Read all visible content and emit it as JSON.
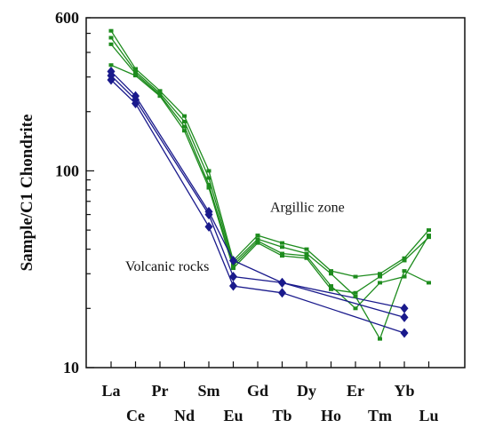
{
  "chart_data": {
    "type": "line",
    "ylabel": "Sample/C1 Chondrite",
    "yscale": "log",
    "ylim": [
      10,
      600
    ],
    "yticks": [
      10,
      100,
      600
    ],
    "categories": [
      "La",
      "Ce",
      "Pr",
      "Nd",
      "Sm",
      "Eu",
      "Gd",
      "Tb",
      "Dy",
      "Ho",
      "Er",
      "Tm",
      "Yb",
      "Lu"
    ],
    "annotations": [
      {
        "text": "Argillic zone"
      },
      {
        "text": "Volcanic rocks"
      }
    ],
    "colors": {
      "argillic": "#1e8c1e",
      "volcanic": "#1a1a8c"
    },
    "series": [
      {
        "group": "argillic",
        "values": [
          515,
          330,
          255,
          190,
          100,
          35,
          47,
          43,
          40,
          31,
          29,
          30,
          36,
          50
        ]
      },
      {
        "group": "argillic",
        "values": [
          475,
          320,
          248,
          178,
          92,
          34,
          45,
          41,
          38,
          30,
          23,
          14,
          31,
          27
        ]
      },
      {
        "group": "argillic",
        "values": [
          440,
          312,
          243,
          168,
          85,
          33,
          44,
          38,
          37,
          26,
          20,
          27,
          29,
          47
        ]
      },
      {
        "group": "argillic",
        "values": [
          345,
          305,
          240,
          160,
          82,
          32,
          43,
          37,
          36,
          25,
          24,
          29,
          35,
          46
        ]
      },
      {
        "group": "volcanic",
        "values": [
          320,
          240,
          null,
          null,
          62,
          35,
          null,
          27,
          null,
          null,
          null,
          null,
          20,
          null
        ]
      },
      {
        "group": "volcanic",
        "values": [
          305,
          230,
          null,
          null,
          60,
          29,
          null,
          27,
          null,
          null,
          null,
          null,
          18,
          null
        ]
      },
      {
        "group": "volcanic",
        "values": [
          290,
          220,
          null,
          null,
          52,
          26,
          null,
          24,
          null,
          null,
          null,
          null,
          15,
          null
        ]
      }
    ]
  }
}
